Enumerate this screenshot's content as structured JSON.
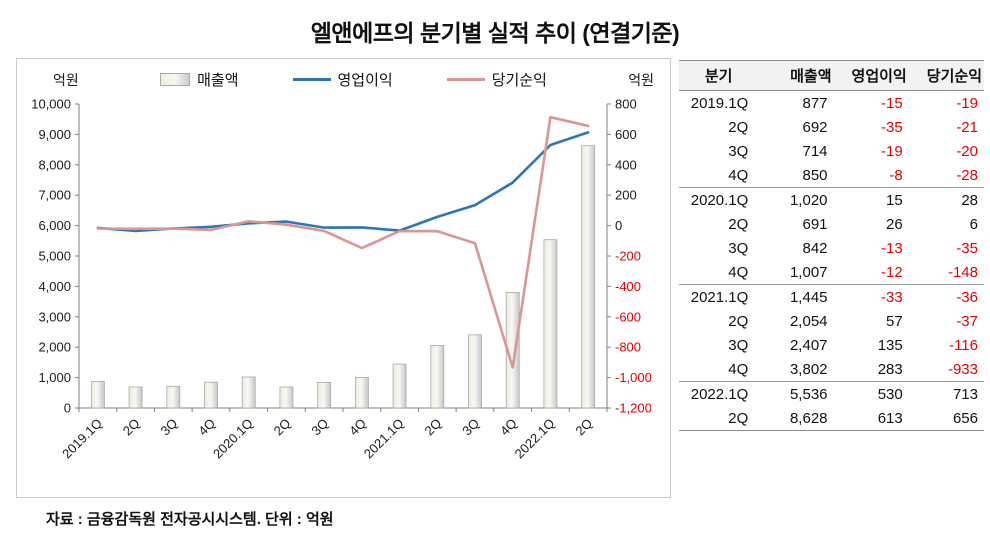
{
  "title": "엘앤에프의 분기별 실적 추이 (연결기준)",
  "footer": {
    "text": "자료 : 금융감독원 전자공시시스템. 단위 : 억원"
  },
  "chart": {
    "left_axis_unit": "억원",
    "right_axis_unit": "억원",
    "legend": [
      {
        "label": "매출액",
        "type": "bar"
      },
      {
        "label": "영업이익",
        "type": "line",
        "color": "#2e75b6"
      },
      {
        "label": "당기순익",
        "type": "line",
        "color": "#d99694"
      }
    ]
  },
  "chart_data": {
    "type": "bar+line combo",
    "title": "엘앤에프의 분기별 실적 추이 (연결기준)",
    "categories": [
      "2019.1Q",
      "2Q",
      "3Q",
      "4Q",
      "2020.1Q",
      "2Q",
      "3Q",
      "4Q",
      "2021.1Q",
      "2Q",
      "3Q",
      "4Q",
      "2022.1Q",
      "2Q"
    ],
    "series": [
      {
        "name": "매출액",
        "type": "bar",
        "axis": "left",
        "values": [
          877,
          692,
          714,
          850,
          1020,
          691,
          842,
          1007,
          1445,
          2054,
          2407,
          3802,
          5536,
          8628
        ]
      },
      {
        "name": "영업이익",
        "type": "line",
        "axis": "right",
        "color": "#2e75b6",
        "values": [
          -15,
          -35,
          -19,
          -8,
          15,
          26,
          -13,
          -12,
          -33,
          57,
          135,
          283,
          530,
          613
        ]
      },
      {
        "name": "당기순익",
        "type": "line",
        "axis": "right",
        "color": "#d99694",
        "values": [
          -19,
          -21,
          -20,
          -28,
          28,
          6,
          -35,
          -148,
          -36,
          -37,
          -116,
          -933,
          713,
          656
        ]
      }
    ],
    "left_axis": {
      "min": 0,
      "max": 10000,
      "step": 1000,
      "label": "억원"
    },
    "right_axis": {
      "min": -1200,
      "max": 800,
      "step": 200,
      "label": "억원",
      "negative_color": "#e60000"
    },
    "grid": false,
    "legend_position": "top"
  },
  "table": {
    "headers": [
      "분기",
      "매출액",
      "영업이익",
      "당기순익"
    ],
    "rows": [
      [
        "2019.1Q",
        "877",
        "-15",
        "-19"
      ],
      [
        "2Q",
        "692",
        "-35",
        "-21"
      ],
      [
        "3Q",
        "714",
        "-19",
        "-20"
      ],
      [
        "4Q",
        "850",
        "-8",
        "-28"
      ],
      [
        "2020.1Q",
        "1,020",
        "15",
        "28"
      ],
      [
        "2Q",
        "691",
        "26",
        "6"
      ],
      [
        "3Q",
        "842",
        "-13",
        "-35"
      ],
      [
        "4Q",
        "1,007",
        "-12",
        "-148"
      ],
      [
        "2021.1Q",
        "1,445",
        "-33",
        "-36"
      ],
      [
        "2Q",
        "2,054",
        "57",
        "-37"
      ],
      [
        "3Q",
        "2,407",
        "135",
        "-116"
      ],
      [
        "4Q",
        "3,802",
        "283",
        "-933"
      ],
      [
        "2022.1Q",
        "5,536",
        "530",
        "713"
      ],
      [
        "2Q",
        "8,628",
        "613",
        "656"
      ]
    ]
  }
}
